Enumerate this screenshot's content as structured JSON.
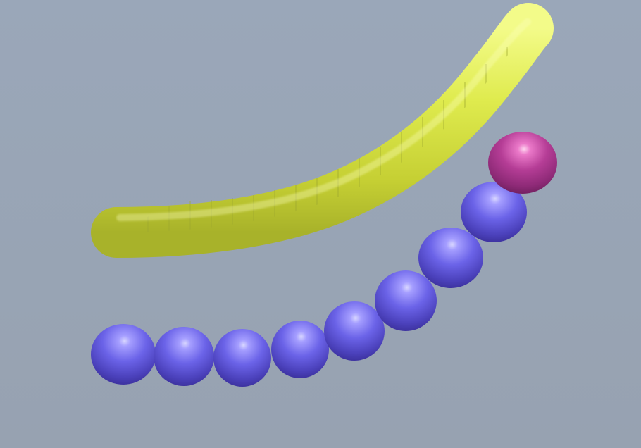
{
  "scene": {
    "background_color": "#98a4b4",
    "tube": {
      "name": "yellow-tube",
      "color": "#e6f25a",
      "shadow_color": "#9aa020"
    },
    "spheres": {
      "count": 9,
      "blue_color": "#5a54d0",
      "magenta_color": "#b83a98"
    }
  }
}
